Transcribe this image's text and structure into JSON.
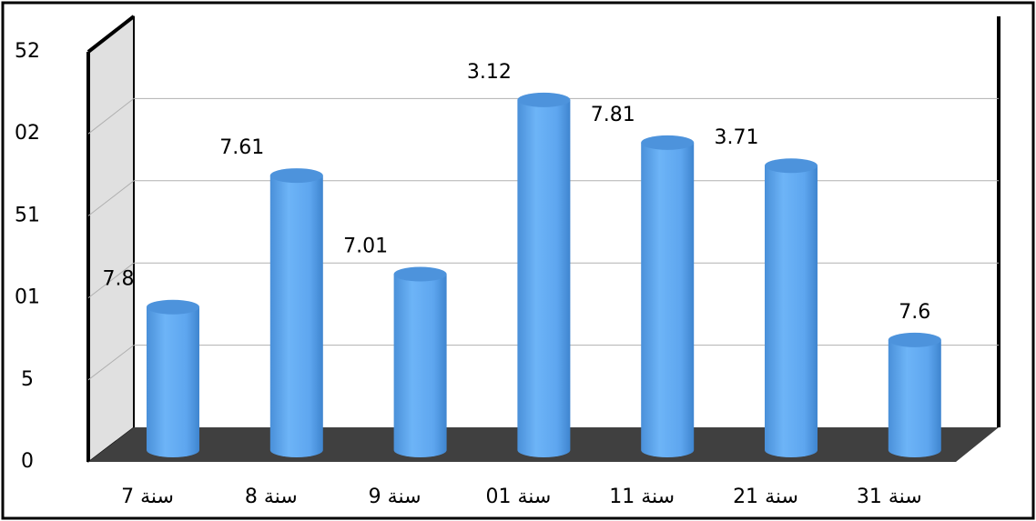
{
  "chart_data": {
    "type": "bar",
    "categories": [
      "7 سنة",
      "8 سنة",
      "9 سنة",
      "01 سنة",
      "11 سنة",
      "21 سنة",
      "31 سنة"
    ],
    "values": [
      8.7,
      16.7,
      10.7,
      21.3,
      18.7,
      17.3,
      6.7
    ],
    "value_labels": [
      "7.8",
      "7.61",
      "7.01",
      "3.12",
      "7.81",
      "3.71",
      "7.6"
    ],
    "color": "#5fa8f0",
    "ylim": [
      0,
      25
    ],
    "yticks": [
      0,
      5,
      {
        "value": 10,
        "label": "01"
      },
      {
        "value": 15,
        "label": "51"
      },
      {
        "value": 20,
        "label": "02"
      },
      {
        "value": 25,
        "label": "52"
      }
    ],
    "grid": true
  }
}
